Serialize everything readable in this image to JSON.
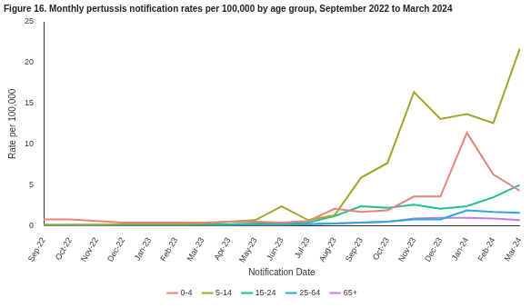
{
  "chart_data": {
    "type": "line",
    "title": "Figure 16. Monthly pertussis notification rates per 100,000 by age group, September 2022 to March 2024",
    "x_label": "Notification Date",
    "y_label": "Rate per 100,000",
    "categories": [
      "Sep-22",
      "Oct-22",
      "Nov-22",
      "Dec-22",
      "Jan-23",
      "Feb-23",
      "Mar-23",
      "Apr-23",
      "May-23",
      "Jun-23",
      "Jul-23",
      "Aug-23",
      "Sep-23",
      "Oct-23",
      "Nov-23",
      "Dec-23",
      "Jan-24",
      "Feb-24",
      "Mar-24"
    ],
    "series": [
      {
        "name": "0-4",
        "color": "#e8827a",
        "values": [
          0.8,
          0.8,
          0.6,
          0.4,
          0.4,
          0.4,
          0.4,
          0.5,
          0.5,
          0.4,
          0.6,
          2.1,
          1.7,
          1.9,
          3.6,
          3.6,
          11.4,
          6.3,
          4.3
        ]
      },
      {
        "name": "5-14",
        "color": "#a3a52a",
        "values": [
          0.1,
          0.1,
          0.1,
          0.2,
          0.2,
          0.2,
          0.3,
          0.5,
          0.7,
          2.4,
          0.7,
          1.3,
          5.9,
          7.7,
          16.4,
          13.1,
          13.7,
          12.6,
          21.7
        ]
      },
      {
        "name": "15-24",
        "color": "#1fbf8f",
        "values": [
          0.1,
          0.1,
          0.1,
          0.1,
          0.1,
          0.1,
          0.2,
          0.2,
          0.3,
          0.3,
          0.4,
          1.2,
          2.4,
          2.2,
          2.6,
          2.1,
          2.4,
          3.5,
          5.0
        ]
      },
      {
        "name": "25-64",
        "color": "#2aa8e0",
        "values": [
          0.1,
          0.1,
          0.1,
          0.1,
          0.1,
          0.1,
          0.1,
          0.1,
          0.2,
          0.2,
          0.2,
          0.3,
          0.4,
          0.5,
          0.8,
          0.8,
          1.9,
          1.7,
          1.6
        ]
      },
      {
        "name": "65+",
        "color": "#c77de0",
        "values": [
          0.1,
          0.1,
          0.1,
          0.1,
          0.1,
          0.1,
          0.1,
          0.1,
          0.1,
          0.1,
          0.2,
          0.3,
          0.4,
          0.5,
          0.9,
          1.0,
          1.0,
          0.9,
          0.7
        ]
      }
    ],
    "ylim": [
      0,
      25
    ],
    "yticks": [
      0,
      5,
      10,
      15,
      20,
      25
    ],
    "grid": false,
    "legend": "bottom"
  }
}
